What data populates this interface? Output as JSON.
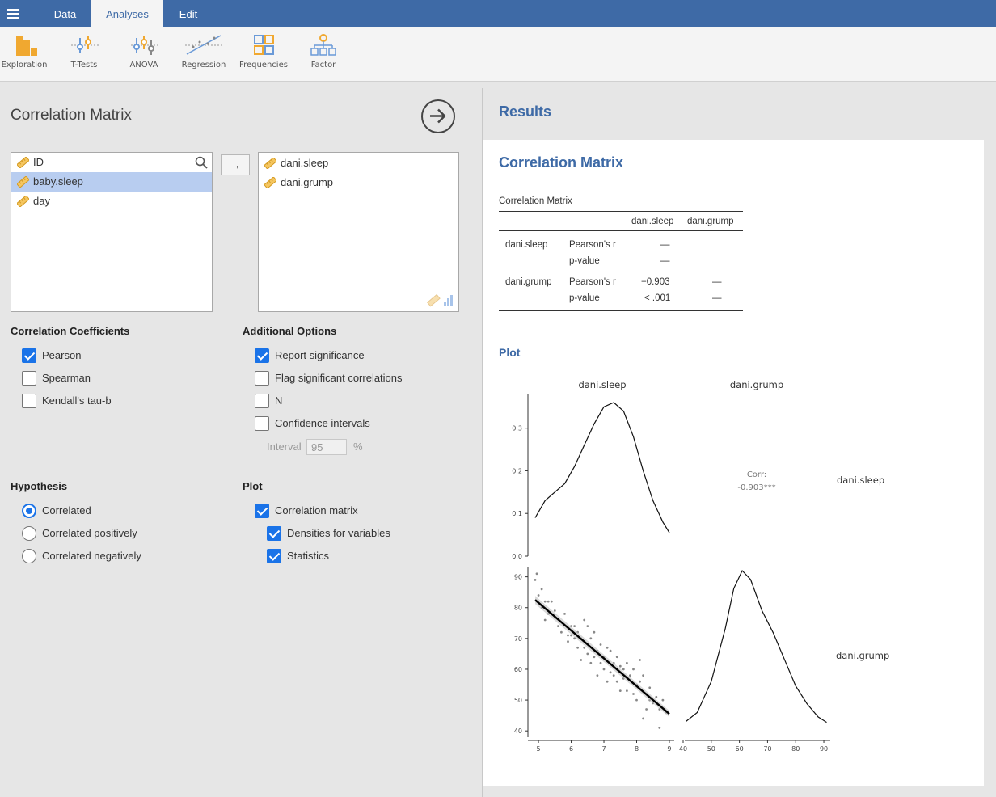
{
  "menubar": {
    "tabs": [
      {
        "label": "Data"
      },
      {
        "label": "Analyses"
      },
      {
        "label": "Edit"
      }
    ]
  },
  "toolbar": {
    "items": [
      {
        "label": "Exploration",
        "icon": "exploration-icon"
      },
      {
        "label": "T-Tests",
        "icon": "t-tests-icon"
      },
      {
        "label": "ANOVA",
        "icon": "anova-icon"
      },
      {
        "label": "Regression",
        "icon": "regression-icon"
      },
      {
        "label": "Frequencies",
        "icon": "frequencies-icon"
      },
      {
        "label": "Factor",
        "icon": "factor-icon"
      }
    ]
  },
  "options": {
    "title": "Correlation Matrix",
    "available_vars": [
      {
        "label": "ID",
        "selected": false
      },
      {
        "label": "baby.sleep",
        "selected": true
      },
      {
        "label": "day",
        "selected": false
      }
    ],
    "selected_vars": [
      {
        "label": "dani.sleep"
      },
      {
        "label": "dani.grump"
      }
    ],
    "arrow_label": "→",
    "coefficients": {
      "heading": "Correlation Coefficients",
      "items": [
        {
          "label": "Pearson",
          "checked": true
        },
        {
          "label": "Spearman",
          "checked": false
        },
        {
          "label": "Kendall's tau-b",
          "checked": false
        }
      ]
    },
    "additional": {
      "heading": "Additional Options",
      "items": [
        {
          "label": "Report significance",
          "checked": true
        },
        {
          "label": "Flag significant correlations",
          "checked": false
        },
        {
          "label": "N",
          "checked": false
        },
        {
          "label": "Confidence intervals",
          "checked": false
        }
      ],
      "interval_label": "Interval",
      "interval_value": "95",
      "interval_unit": "%"
    },
    "hypothesis": {
      "heading": "Hypothesis",
      "items": [
        {
          "label": "Correlated",
          "checked": true
        },
        {
          "label": "Correlated positively",
          "checked": false
        },
        {
          "label": "Correlated negatively",
          "checked": false
        }
      ]
    },
    "plot": {
      "heading": "Plot",
      "items": [
        {
          "label": "Correlation matrix",
          "checked": true
        },
        {
          "label": "Densities for variables",
          "checked": true
        },
        {
          "label": "Statistics",
          "checked": true
        }
      ]
    }
  },
  "results": {
    "title": "Results",
    "section_title": "Correlation Matrix",
    "table": {
      "title": "Correlation Matrix",
      "columns": [
        "dani.sleep",
        "dani.grump"
      ],
      "rows": [
        {
          "var": "dani.sleep",
          "r_label": "Pearson's r",
          "p_label": "p-value",
          "r": [
            "—",
            ""
          ],
          "p": [
            "—",
            ""
          ]
        },
        {
          "var": "dani.grump",
          "r_label": "Pearson's r",
          "p_label": "p-value",
          "r": [
            "−0.903",
            "—"
          ],
          "p": [
            "< .001",
            "—"
          ]
        }
      ]
    },
    "plot_title": "Plot"
  },
  "chart_data": {
    "type": "scatter",
    "variables": [
      "dani.sleep",
      "dani.grump"
    ],
    "corr_label": "Corr:",
    "corr_value": "-0.903***",
    "density_sleep": {
      "x": [
        4.9,
        5.2,
        5.5,
        5.8,
        6.1,
        6.4,
        6.7,
        7.0,
        7.3,
        7.6,
        7.9,
        8.2,
        8.5,
        8.8,
        9.0
      ],
      "y": [
        0.09,
        0.13,
        0.15,
        0.17,
        0.21,
        0.26,
        0.31,
        0.35,
        0.36,
        0.34,
        0.28,
        0.2,
        0.13,
        0.08,
        0.055
      ],
      "ylim": [
        0,
        0.36
      ],
      "yticks": [
        "0.0",
        "0.1",
        "0.2",
        "0.3"
      ]
    },
    "density_grump": {
      "x": [
        41,
        45,
        50,
        55,
        58,
        61,
        64,
        68,
        72,
        76,
        80,
        84,
        88,
        91
      ],
      "y": [
        0.001,
        0.003,
        0.01,
        0.022,
        0.031,
        0.035,
        0.033,
        0.026,
        0.021,
        0.015,
        0.009,
        0.005,
        0.002,
        0.0008
      ],
      "xticks": [
        "40",
        "50",
        "60",
        "70",
        "80",
        "90"
      ],
      "xlim": [
        40,
        92
      ]
    },
    "scatter": {
      "xlim": [
        4.85,
        9.05
      ],
      "ylim": [
        39,
        92
      ],
      "xticks": [
        "5",
        "6",
        "7",
        "8",
        "9"
      ],
      "yticks": [
        "40",
        "50",
        "60",
        "70",
        "80",
        "90"
      ],
      "fit": {
        "x": [
          4.9,
          9.0
        ],
        "y": [
          82.5,
          45.5
        ]
      },
      "points": [
        [
          4.95,
          91
        ],
        [
          4.9,
          89
        ],
        [
          5.1,
          86
        ],
        [
          5.0,
          84
        ],
        [
          5.2,
          82
        ],
        [
          5.3,
          82
        ],
        [
          5.4,
          82
        ],
        [
          5.1,
          80
        ],
        [
          5.3,
          78
        ],
        [
          5.5,
          77
        ],
        [
          5.2,
          76
        ],
        [
          5.6,
          74
        ],
        [
          5.8,
          78
        ],
        [
          5.7,
          72
        ],
        [
          5.9,
          71
        ],
        [
          6.0,
          74
        ],
        [
          6.1,
          74
        ],
        [
          5.9,
          69
        ],
        [
          6.2,
          72
        ],
        [
          6.4,
          76
        ],
        [
          6.3,
          70
        ],
        [
          6.5,
          74
        ],
        [
          6.2,
          67
        ],
        [
          6.4,
          67
        ],
        [
          6.6,
          70
        ],
        [
          6.7,
          72
        ],
        [
          6.5,
          65
        ],
        [
          6.8,
          66
        ],
        [
          6.6,
          62
        ],
        [
          6.3,
          63
        ],
        [
          6.9,
          68
        ],
        [
          7.0,
          64
        ],
        [
          7.1,
          67
        ],
        [
          6.9,
          62
        ],
        [
          7.2,
          66
        ],
        [
          7.0,
          60
        ],
        [
          7.3,
          62
        ],
        [
          6.8,
          58
        ],
        [
          7.4,
          64
        ],
        [
          7.5,
          61
        ],
        [
          7.3,
          58
        ],
        [
          7.6,
          60
        ],
        [
          7.7,
          62
        ],
        [
          7.4,
          56
        ],
        [
          7.8,
          58
        ],
        [
          7.5,
          53
        ],
        [
          7.9,
          60
        ],
        [
          8.0,
          55
        ],
        [
          7.7,
          53
        ],
        [
          8.1,
          56
        ],
        [
          8.2,
          58
        ],
        [
          8.3,
          52
        ],
        [
          8.0,
          50
        ],
        [
          8.4,
          54
        ],
        [
          8.5,
          49
        ],
        [
          8.3,
          47
        ],
        [
          8.6,
          51
        ],
        [
          8.7,
          47
        ],
        [
          8.2,
          44
        ],
        [
          8.8,
          50
        ],
        [
          8.9,
          46
        ],
        [
          8.7,
          41
        ],
        [
          7.1,
          56
        ],
        [
          6.0,
          71
        ],
        [
          7.6,
          57
        ],
        [
          8.1,
          63
        ],
        [
          6.7,
          64
        ],
        [
          7.2,
          59
        ],
        [
          8.4,
          50
        ],
        [
          7.9,
          52
        ],
        [
          6.1,
          70
        ],
        [
          5.5,
          79
        ]
      ]
    }
  }
}
